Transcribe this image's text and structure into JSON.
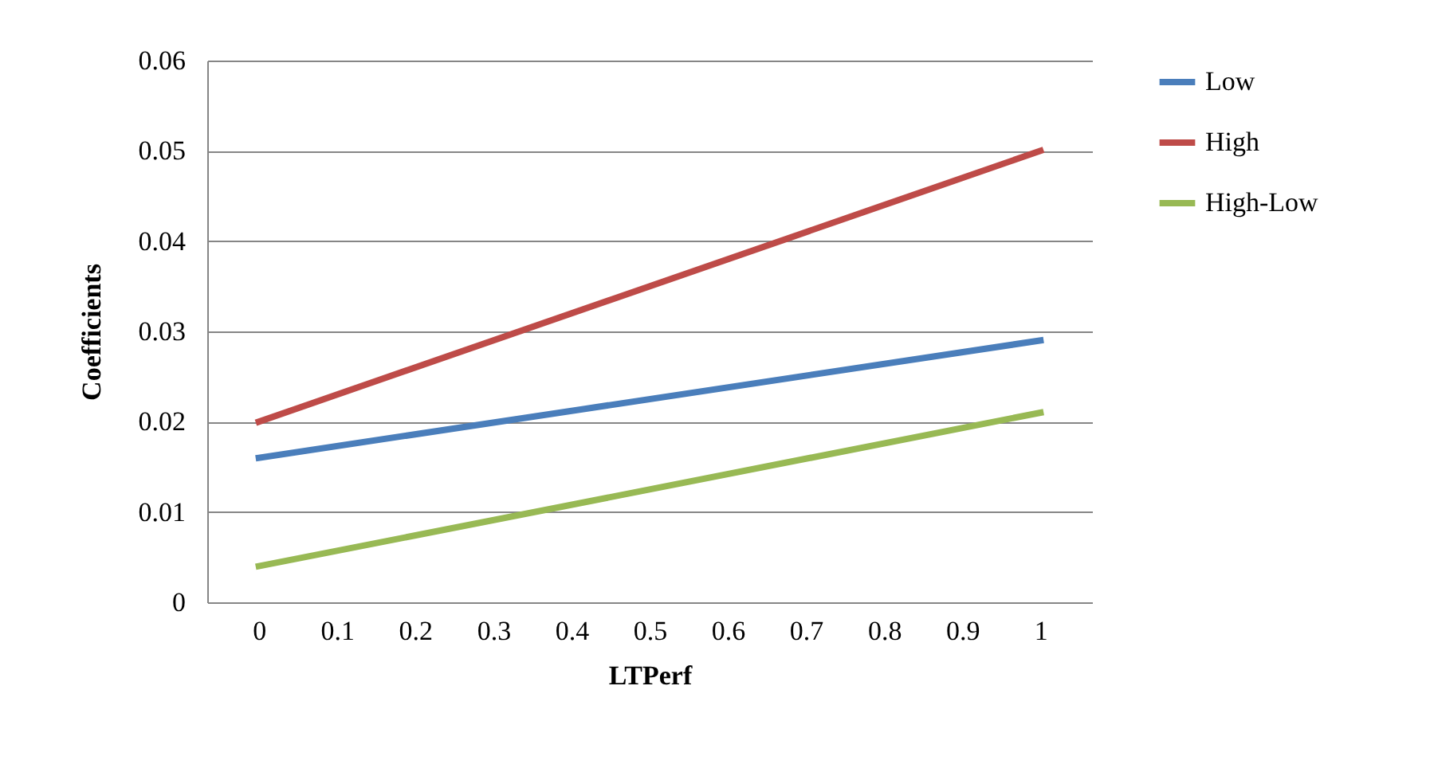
{
  "chart_data": {
    "type": "line",
    "xlabel": "LTPerf",
    "ylabel": "Coefficients",
    "x": [
      0,
      1
    ],
    "xlim": [
      -0.066,
      1.066
    ],
    "xticks": [
      0,
      0.1,
      0.2,
      0.3,
      0.4,
      0.5,
      0.6,
      0.7,
      0.8,
      0.9,
      1
    ],
    "ylim": [
      0,
      0.06
    ],
    "yticks": [
      0,
      0.01,
      0.02,
      0.03,
      0.04,
      0.05,
      0.06
    ],
    "grid": "y",
    "legend": "right",
    "marker": "none",
    "line_style": "solid",
    "series": [
      {
        "name": "Low",
        "color": "#4a7ebb",
        "values": [
          0.016,
          0.029
        ]
      },
      {
        "name": "High",
        "color": "#be4b48",
        "values": [
          0.02,
          0.05
        ]
      },
      {
        "name": "High-Low",
        "color": "#98b954",
        "values": [
          0.004,
          0.021
        ]
      }
    ]
  }
}
